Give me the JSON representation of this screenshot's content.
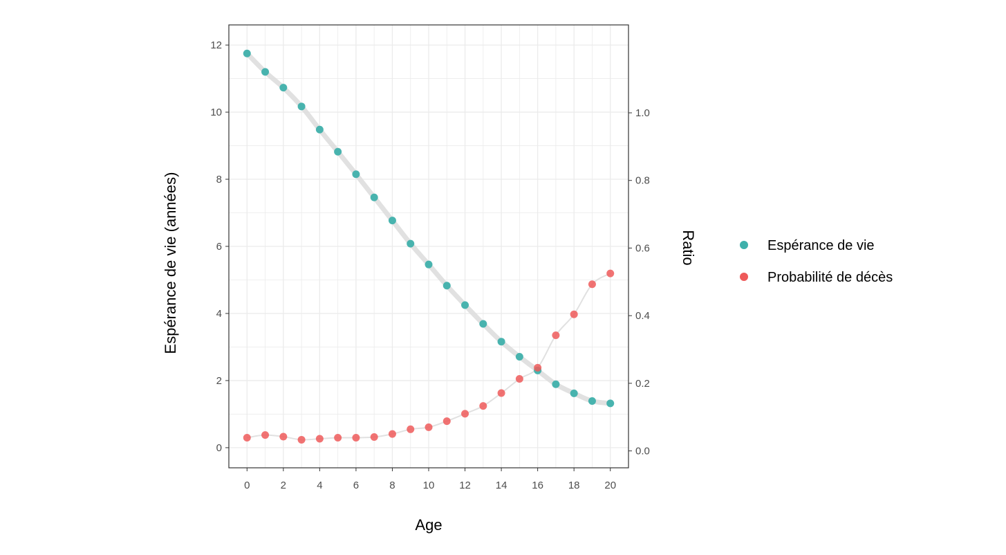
{
  "chart_data": {
    "type": "scatter",
    "xlabel": "Age",
    "ylabel": "Espérance de vie (années)",
    "y2label": "Ratio",
    "xlim": [
      -1,
      21
    ],
    "ylim": [
      -0.6,
      12.6
    ],
    "y2lim": [
      -0.05,
      1.26
    ],
    "x_ticks": [
      0,
      2,
      4,
      6,
      8,
      10,
      12,
      14,
      16,
      18,
      20
    ],
    "y_ticks": [
      0,
      2,
      4,
      6,
      8,
      10,
      12
    ],
    "y2_ticks": [
      "0.0",
      "0.2",
      "0.4",
      "0.6",
      "0.8",
      "1.0"
    ],
    "grid": true,
    "legend_position": "right",
    "x": [
      0,
      1,
      2,
      3,
      4,
      5,
      6,
      7,
      8,
      9,
      10,
      11,
      12,
      13,
      14,
      15,
      16,
      17,
      18,
      19,
      20
    ],
    "series": [
      {
        "name": "Espérance de vie",
        "axis": "left",
        "color": "#3fb0ab",
        "values": [
          11.75,
          11.2,
          10.73,
          10.17,
          9.48,
          8.82,
          8.15,
          7.46,
          6.77,
          6.08,
          5.46,
          4.83,
          4.25,
          3.69,
          3.16,
          2.71,
          2.3,
          1.89,
          1.62,
          1.39,
          1.32
        ]
      },
      {
        "name": "Probabilité de décès",
        "axis": "right",
        "color": "#ee5a5a",
        "values": [
          0.039,
          0.047,
          0.042,
          0.033,
          0.036,
          0.039,
          0.039,
          0.041,
          0.05,
          0.064,
          0.07,
          0.088,
          0.11,
          0.133,
          0.171,
          0.213,
          0.246,
          0.342,
          0.404,
          0.493,
          0.525
        ]
      }
    ]
  }
}
